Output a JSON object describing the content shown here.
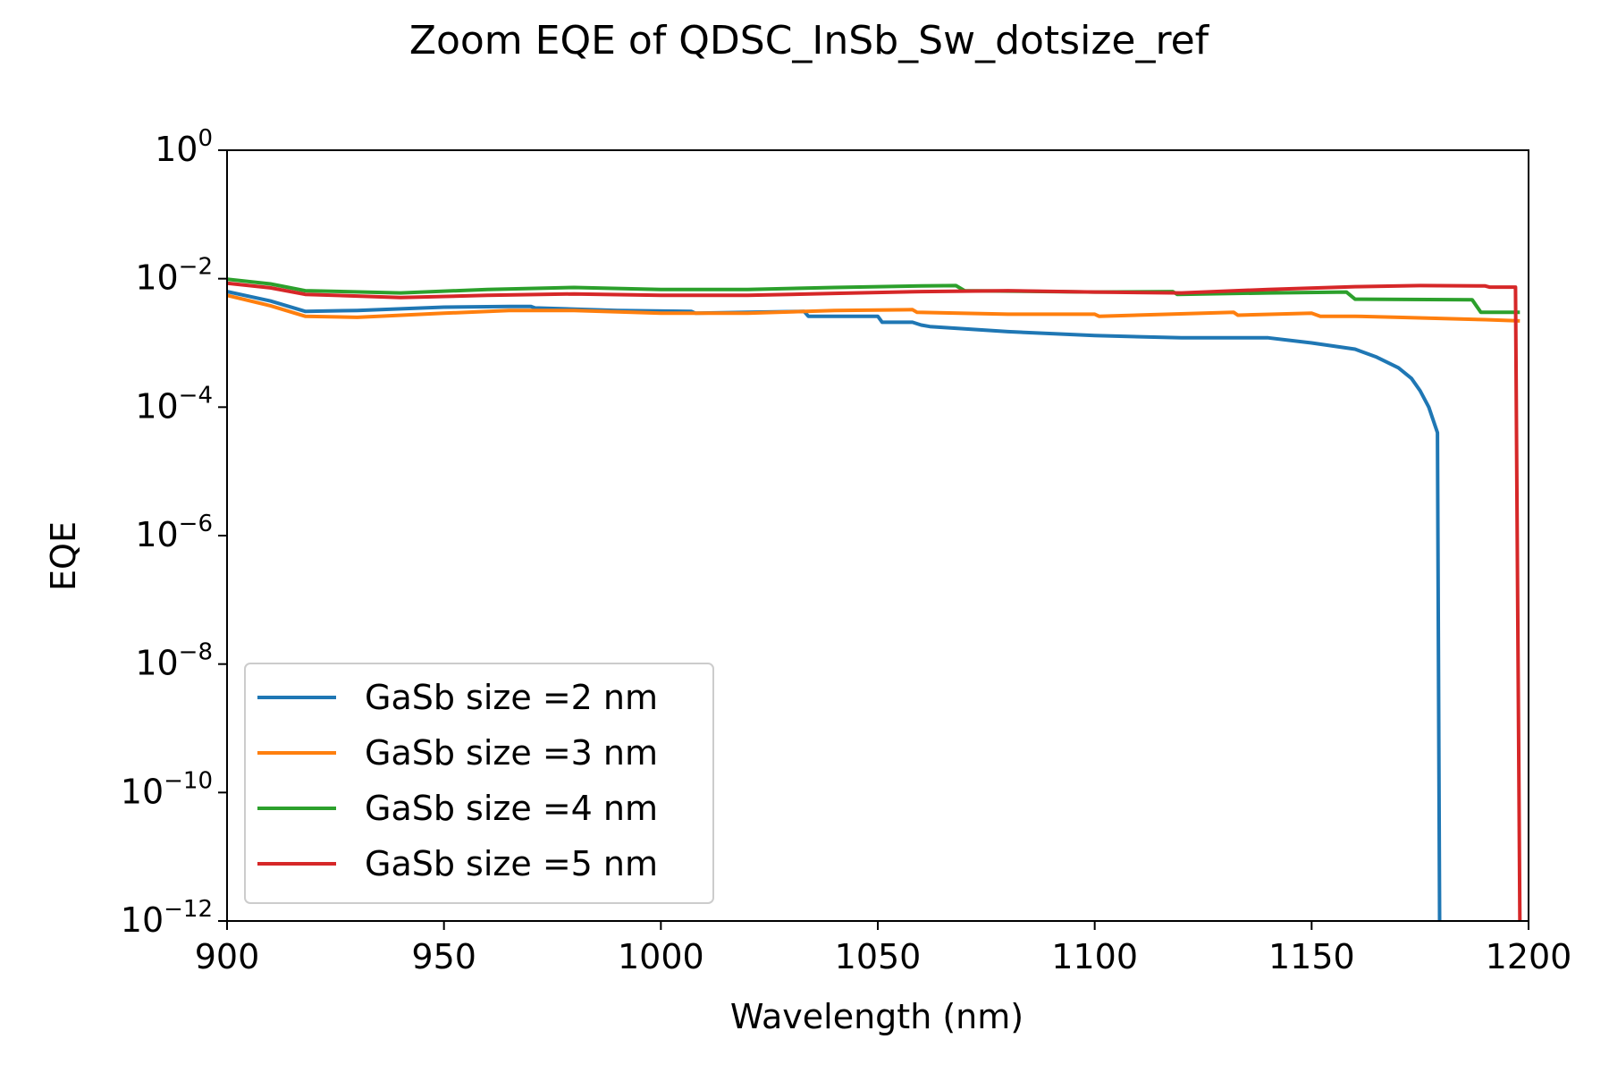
{
  "chart_data": {
    "type": "line",
    "title": "Zoom EQE of QDSC_InSb_Sw_dotsize_ref",
    "xlabel": "Wavelength (nm)",
    "ylabel": "EQE",
    "xlim": [
      900,
      1200
    ],
    "ylim": [
      1e-12,
      1
    ],
    "yscale": "log",
    "grid": false,
    "legend_position": "lower-left",
    "x_ticks": [
      900,
      950,
      1000,
      1050,
      1100,
      1150,
      1200
    ],
    "x_tick_labels": [
      "900",
      "950",
      "1000",
      "1050",
      "1100",
      "1150",
      "1200"
    ],
    "y_tick_exponents": [
      0,
      -2,
      -4,
      -6,
      -8,
      -10,
      -12
    ],
    "y_tick_labels": [
      {
        "base": "10",
        "exp": "0"
      },
      {
        "base": "10",
        "exp": "−2"
      },
      {
        "base": "10",
        "exp": "−4"
      },
      {
        "base": "10",
        "exp": "−6"
      },
      {
        "base": "10",
        "exp": "−8"
      },
      {
        "base": "10",
        "exp": "−10"
      },
      {
        "base": "10",
        "exp": "−12"
      }
    ],
    "series": [
      {
        "name": "GaSb size =2 nm",
        "color": "#1f77b4",
        "points": [
          [
            900,
            0.0063
          ],
          [
            910,
            0.0045
          ],
          [
            918,
            0.0031
          ],
          [
            930,
            0.0032
          ],
          [
            950,
            0.0036
          ],
          [
            965,
            0.0037
          ],
          [
            970,
            0.0037
          ],
          [
            971,
            0.0035
          ],
          [
            990,
            0.0032
          ],
          [
            1007,
            0.0031
          ],
          [
            1008,
            0.0029
          ],
          [
            1020,
            0.003
          ],
          [
            1033,
            0.0031
          ],
          [
            1034,
            0.0026
          ],
          [
            1050,
            0.0026
          ],
          [
            1051,
            0.0021
          ],
          [
            1058,
            0.0021
          ],
          [
            1060,
            0.0019
          ],
          [
            1062,
            0.0018
          ],
          [
            1080,
            0.0015
          ],
          [
            1100,
            0.0013
          ],
          [
            1120,
            0.0012
          ],
          [
            1140,
            0.0012
          ],
          [
            1150,
            0.001
          ],
          [
            1160,
            0.0008
          ],
          [
            1165,
            0.0006
          ],
          [
            1170,
            0.00041
          ],
          [
            1173,
            0.00028
          ],
          [
            1175,
            0.00018
          ],
          [
            1177,
            0.0001
          ],
          [
            1179,
            4e-05
          ],
          [
            1179.5,
            1e-12
          ]
        ]
      },
      {
        "name": "GaSb size =3 nm",
        "color": "#ff7f0e",
        "points": [
          [
            900,
            0.0055
          ],
          [
            910,
            0.0038
          ],
          [
            918,
            0.0026
          ],
          [
            930,
            0.0025
          ],
          [
            950,
            0.0029
          ],
          [
            965,
            0.0032
          ],
          [
            980,
            0.0032
          ],
          [
            1000,
            0.0029
          ],
          [
            1020,
            0.0029
          ],
          [
            1040,
            0.0032
          ],
          [
            1058,
            0.0033
          ],
          [
            1059,
            0.003
          ],
          [
            1080,
            0.0028
          ],
          [
            1100,
            0.0028
          ],
          [
            1101,
            0.0026
          ],
          [
            1132,
            0.003
          ],
          [
            1133,
            0.0027
          ],
          [
            1150,
            0.0029
          ],
          [
            1152,
            0.0026
          ],
          [
            1160,
            0.0026
          ],
          [
            1170,
            0.0025
          ],
          [
            1190,
            0.0023
          ],
          [
            1198,
            0.0022
          ]
        ]
      },
      {
        "name": "GaSb size =4 nm",
        "color": "#2ca02c",
        "points": [
          [
            900,
            0.0098
          ],
          [
            910,
            0.0083
          ],
          [
            918,
            0.0065
          ],
          [
            940,
            0.006
          ],
          [
            960,
            0.0068
          ],
          [
            980,
            0.0073
          ],
          [
            1000,
            0.0068
          ],
          [
            1020,
            0.0068
          ],
          [
            1040,
            0.0073
          ],
          [
            1060,
            0.0077
          ],
          [
            1068,
            0.0078
          ],
          [
            1070,
            0.0065
          ],
          [
            1100,
            0.0062
          ],
          [
            1118,
            0.0063
          ],
          [
            1119,
            0.0057
          ],
          [
            1140,
            0.006
          ],
          [
            1158,
            0.0062
          ],
          [
            1160,
            0.0048
          ],
          [
            1187,
            0.0047
          ],
          [
            1189,
            0.003
          ],
          [
            1198,
            0.003
          ]
        ]
      },
      {
        "name": "GaSb size =5 nm",
        "color": "#d62728",
        "points": [
          [
            900,
            0.0085
          ],
          [
            910,
            0.0072
          ],
          [
            918,
            0.0057
          ],
          [
            940,
            0.0051
          ],
          [
            960,
            0.0055
          ],
          [
            980,
            0.0058
          ],
          [
            1000,
            0.0055
          ],
          [
            1020,
            0.0055
          ],
          [
            1040,
            0.0059
          ],
          [
            1060,
            0.0063
          ],
          [
            1080,
            0.0065
          ],
          [
            1100,
            0.0062
          ],
          [
            1120,
            0.006
          ],
          [
            1140,
            0.0068
          ],
          [
            1160,
            0.0075
          ],
          [
            1175,
            0.0078
          ],
          [
            1190,
            0.0077
          ],
          [
            1191,
            0.0074
          ],
          [
            1197,
            0.0074
          ],
          [
            1198,
            1e-12
          ]
        ]
      }
    ]
  }
}
